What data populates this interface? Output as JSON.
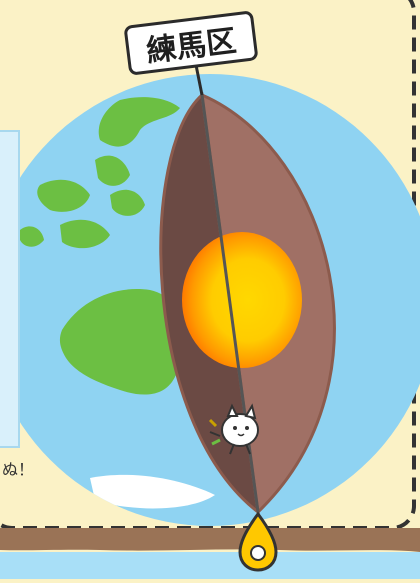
{
  "location_label": "練馬区",
  "side_text": "ぬ！",
  "colors": {
    "background": "#fbf2c6",
    "ocean": "#8fd3f2",
    "land": "#6cbf43",
    "mantle_dark": "#6b4a44",
    "mantle_light": "#a07065",
    "core_outer": "#ff8a00",
    "core_inner": "#ffd800",
    "ground": "#9a7356",
    "water": "#a8dff7",
    "pin": "#ffc800"
  },
  "icons": {
    "location_pin": "location-pin-icon",
    "character": "cat-character-icon"
  }
}
